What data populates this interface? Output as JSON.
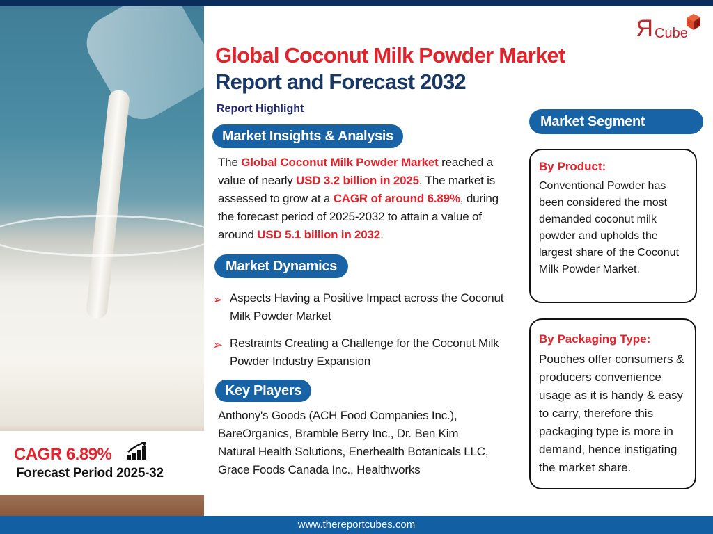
{
  "logo": {
    "text": "RCube",
    "brand_color": "#c1272d"
  },
  "title": {
    "line1": "Global Coconut Milk Powder Market",
    "line2": "Report and Forecast 2032"
  },
  "report_highlight": "Report Highlight",
  "insights": {
    "heading": "Market Insights & Analysis",
    "parts": [
      "The ",
      "Global Coconut Milk Powder Market",
      " reached a value of nearly ",
      "USD 3.2 billion in 2025",
      ". The market is assessed to grow at a ",
      "CAGR of around 6.89%",
      ", during the forecast period of 2025-2032 to attain a value of around ",
      "USD 5.1 billion in 2032",
      "."
    ]
  },
  "dynamics": {
    "heading": "Market Dynamics",
    "items": [
      "Aspects Having a Positive Impact across the Coconut Milk Powder Market",
      "Restraints Creating a Challenge for the Coconut Milk Powder Industry Expansion"
    ]
  },
  "key_players": {
    "heading": "Key Players",
    "text": "Anthony's Goods (ACH Food Companies Inc.), BareOrganics, Bramble Berry Inc., Dr. Ben Kim Natural Health Solutions, Enerhealth Botanicals LLC, Grace Foods Canada Inc., Healthworks"
  },
  "segment": {
    "heading": "Market Segment",
    "product": {
      "label": "By Product:",
      "text": "Conventional Powder has been considered the most demanded coconut milk powder and upholds the largest share of the Coconut Milk Powder Market."
    },
    "packaging": {
      "label": "By Packaging Type:",
      "text": "Pouches offer consumers & producers convenience usage as it is handy & easy to carry, therefore this packaging type is more in demand, hence instigating the market share."
    }
  },
  "cagr": {
    "label": "CAGR 6.89%",
    "period": "Forecast Period 2025-32",
    "icon": "growth-chart-icon"
  },
  "footer": {
    "url": "www.thereportcubes.com"
  },
  "colors": {
    "accent_red": "#e3232b",
    "pill_blue": "#1763a6",
    "title_navy": "#183765",
    "footer_blue": "#1260a3"
  }
}
